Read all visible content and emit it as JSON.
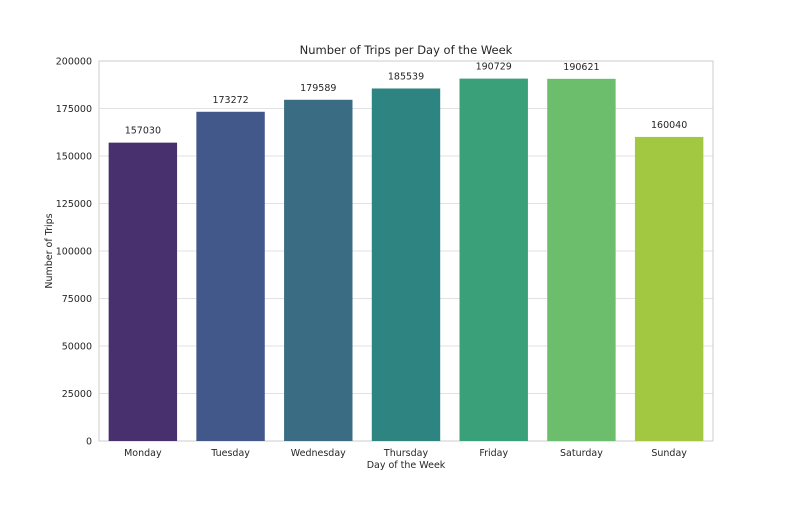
{
  "chart_data": {
    "type": "bar",
    "title": "Number of Trips per Day of the Week",
    "xlabel": "Day of the Week",
    "ylabel": "Number of Trips",
    "categories": [
      "Monday",
      "Tuesday",
      "Wednesday",
      "Thursday",
      "Friday",
      "Saturday",
      "Sunday"
    ],
    "values": [
      157030,
      173272,
      179589,
      185539,
      190729,
      190621,
      160040
    ],
    "data_labels": [
      "157030",
      "173272",
      "179589",
      "185539",
      "190729",
      "190621",
      "160040"
    ],
    "ylim": [
      0,
      200000
    ],
    "yticks": [
      0,
      25000,
      50000,
      75000,
      100000,
      125000,
      150000,
      175000,
      200000
    ],
    "ytick_labels": [
      "0",
      "25000",
      "50000",
      "75000",
      "100000",
      "125000",
      "150000",
      "175000",
      "200000"
    ],
    "colors": [
      "#482f6e",
      "#42578a",
      "#3a6d84",
      "#2e8480",
      "#3aa07a",
      "#6cbe6c",
      "#a2c842"
    ],
    "grid": true,
    "legend": "none"
  }
}
